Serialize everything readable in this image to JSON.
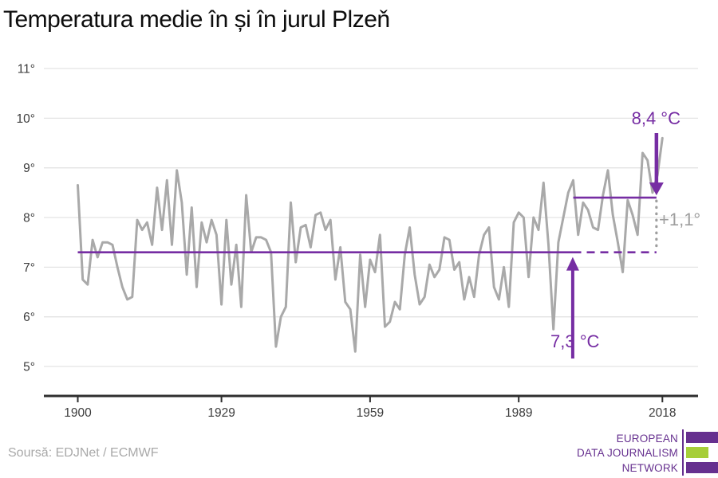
{
  "title": "Temperatura medie în și în jurul Plzeň",
  "source_label": "Soursă: EDJNet / ECMWF",
  "logo": {
    "line1": "EUROPEAN",
    "line2": "DATA JOURNALISM",
    "line3": "NETWORK"
  },
  "annotations": {
    "recent_mean_label": "8,4 °C",
    "baseline_mean_label": "7,3 °C",
    "delta_label": "+1,1°",
    "baseline_value": 7.3,
    "recent_value": 8.4,
    "baseline_solid_span": [
      1900,
      2000
    ],
    "baseline_dashed_span": [
      2000,
      2016.8
    ],
    "recent_span": [
      2000,
      2016.8
    ],
    "connector_year": 2016.8,
    "baseline_arrow_year": 1999.9,
    "recent_arrow_year": 2016.8
  },
  "colors": {
    "accent_purple": "#762da3",
    "logo_purple": "#66308f",
    "logo_green": "#a6ce39",
    "line_gray": "#a9a9a9",
    "grid_gray": "#e3e3e3",
    "axis_dark": "#2e2e2e",
    "tick_text": "#3c3c3c",
    "annotation_gray": "#9e9e9e"
  },
  "chart_data": {
    "type": "line",
    "title": "Temperatura medie în și în jurul Plzeň",
    "unit": "°C",
    "xlabel": "",
    "ylabel": "",
    "grid": "horizontal",
    "legend": "none",
    "ylim": [
      5,
      11
    ],
    "y_tick_values": [
      5,
      6,
      7,
      8,
      9,
      10,
      11
    ],
    "y_tick_labels": [
      "5°",
      "6°",
      "7°",
      "8°",
      "9°",
      "10°",
      "11°"
    ],
    "x_tick_values": [
      1900,
      1929,
      1959,
      1989,
      2018
    ],
    "x_tick_labels": [
      "1900",
      "1929",
      "1959",
      "1989",
      "2018"
    ],
    "x_start": 1900,
    "x_end": 2018,
    "x_step": 1,
    "values": [
      8.65,
      6.75,
      6.65,
      7.55,
      7.2,
      7.5,
      7.5,
      7.45,
      7.0,
      6.6,
      6.35,
      6.4,
      7.95,
      7.75,
      7.9,
      7.45,
      8.6,
      7.75,
      8.75,
      7.45,
      8.95,
      8.3,
      6.85,
      8.2,
      6.6,
      7.9,
      7.5,
      7.95,
      7.65,
      6.25,
      7.95,
      6.65,
      7.45,
      6.2,
      8.45,
      7.3,
      7.6,
      7.6,
      7.55,
      7.3,
      5.4,
      6.0,
      6.2,
      8.3,
      7.1,
      7.8,
      7.85,
      7.4,
      8.05,
      8.1,
      7.75,
      7.95,
      6.75,
      7.4,
      6.3,
      6.15,
      5.3,
      7.25,
      6.2,
      7.15,
      6.9,
      7.65,
      5.8,
      5.9,
      6.3,
      6.15,
      7.25,
      7.8,
      6.85,
      6.25,
      6.4,
      7.05,
      6.8,
      6.95,
      7.6,
      7.55,
      6.95,
      7.1,
      6.35,
      6.8,
      6.4,
      7.25,
      7.65,
      7.8,
      6.6,
      6.35,
      7.0,
      6.2,
      7.9,
      8.1,
      8.0,
      6.8,
      8.0,
      7.75,
      8.7,
      7.45,
      5.75,
      7.5,
      8.0,
      8.5,
      8.75,
      7.65,
      8.3,
      8.15,
      7.8,
      7.75,
      8.45,
      8.95,
      8.05,
      7.5,
      6.9,
      8.35,
      8.05,
      7.65,
      9.3,
      9.15,
      8.5,
      8.85,
      9.6
    ]
  }
}
